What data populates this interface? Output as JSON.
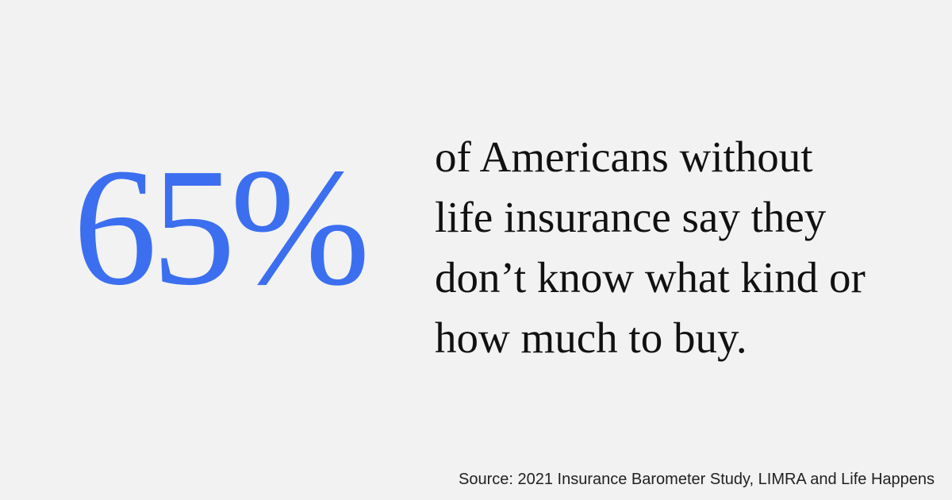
{
  "stat": "65%",
  "statement": {
    "lines": [
      "of Americans without",
      "life insurance say they",
      "don’t know what kind or",
      "how much to buy."
    ]
  },
  "source": "Source: 2021 Insurance Barometer Study, LIMRA and Life Happens"
}
